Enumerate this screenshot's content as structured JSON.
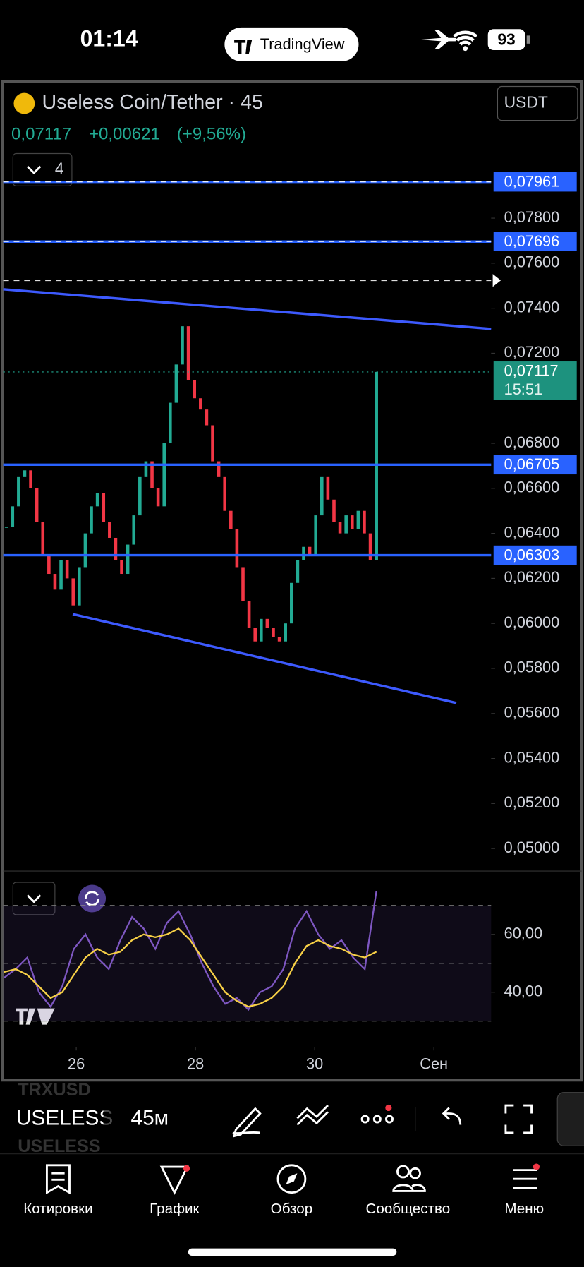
{
  "status": {
    "time": "01:14",
    "battery": "93"
  },
  "app_title": "TradingView",
  "header": {
    "symbol": "Useless Coin/Tether · 45",
    "currency": "USDT",
    "price": "0,07117",
    "change": "+0,00621",
    "change_pct": "(+9,56%)",
    "indicators": "4"
  },
  "chart_data": [
    {
      "type": "candlestick",
      "up_color": "#22ab94",
      "down_color": "#f23645",
      "closes": [
        0.0643,
        0.0652,
        0.0665,
        0.0668,
        0.066,
        0.0645,
        0.063,
        0.0622,
        0.0615,
        0.0628,
        0.062,
        0.0608,
        0.0625,
        0.064,
        0.0652,
        0.0658,
        0.0645,
        0.0638,
        0.0628,
        0.0622,
        0.0635,
        0.0648,
        0.0665,
        0.0672,
        0.066,
        0.0652,
        0.068,
        0.0698,
        0.0715,
        0.0732,
        0.0708,
        0.07,
        0.0695,
        0.0688,
        0.0672,
        0.0665,
        0.065,
        0.0642,
        0.0625,
        0.061,
        0.0598,
        0.0592,
        0.0602,
        0.0598,
        0.0594,
        0.0592,
        0.06,
        0.0618,
        0.0628,
        0.0634,
        0.063,
        0.0648,
        0.0665,
        0.0655,
        0.0645,
        0.064,
        0.0648,
        0.0642,
        0.065,
        0.064,
        0.0628,
        0.07117
      ],
      "ylim": [
        0.049,
        0.0841
      ],
      "yticks": [
        {
          "value": 0.05,
          "label": "0,05000"
        },
        {
          "value": 0.052,
          "label": "0,05200"
        },
        {
          "value": 0.054,
          "label": "0,05400"
        },
        {
          "value": 0.056,
          "label": "0,05600"
        },
        {
          "value": 0.058,
          "label": "0,05800"
        },
        {
          "value": 0.06,
          "label": "0,06000"
        },
        {
          "value": 0.062,
          "label": "0,06200"
        },
        {
          "value": 0.064,
          "label": "0,06400"
        },
        {
          "value": 0.066,
          "label": "0,06600"
        },
        {
          "value": 0.068,
          "label": "0,06800"
        },
        {
          "value": 0.072,
          "label": "0,07200"
        },
        {
          "value": 0.074,
          "label": "0,07400"
        },
        {
          "value": 0.076,
          "label": "0,07600"
        },
        {
          "value": 0.078,
          "label": "0,07800"
        }
      ],
      "levels": [
        {
          "value": 0.07961,
          "label": "0,07961"
        },
        {
          "value": 0.07696,
          "label": "0,07696"
        },
        {
          "value": 0.06705,
          "label": "0,06705"
        },
        {
          "value": 0.06303,
          "label": "0,06303"
        }
      ],
      "level_color": "#2962ff",
      "current": {
        "value": 0.07117,
        "label": "0,07117",
        "time": "15:51"
      },
      "xlim": [
        24.775,
        32.96
      ],
      "xticks": [
        {
          "value": 26,
          "label": "26"
        },
        {
          "value": 28,
          "label": "28"
        },
        {
          "value": 30,
          "label": "30"
        },
        {
          "value": 32,
          "label": "Сен"
        }
      ]
    },
    {
      "type": "line",
      "ylim": [
        27.7,
        79.1
      ],
      "yticks": [
        {
          "value": 60,
          "label": "60,00"
        },
        {
          "value": 40,
          "label": "40,00"
        }
      ],
      "levels": [
        70,
        50,
        30
      ],
      "series": [
        {
          "color": "#7e57c2",
          "values": [
            45,
            48,
            52,
            40,
            35,
            42,
            55,
            60,
            52,
            48,
            58,
            66,
            62,
            55,
            64,
            68,
            60,
            50,
            42,
            36,
            38,
            34,
            40,
            42,
            48,
            62,
            68,
            60,
            55,
            58,
            52,
            48,
            75
          ]
        },
        {
          "color": "#f7d046",
          "values": [
            47,
            48,
            46,
            42,
            38,
            40,
            46,
            52,
            55,
            53,
            54,
            58,
            60,
            59,
            60,
            62,
            58,
            52,
            46,
            40,
            37,
            35,
            36,
            38,
            42,
            50,
            56,
            58,
            56,
            55,
            53,
            52,
            54
          ]
        }
      ]
    }
  ],
  "toolbar": {
    "prev": "TRXUSD",
    "symbol": "USELESS",
    "next": "USELESS",
    "interval": "45м"
  },
  "nav": [
    "Котировки",
    "График",
    "Обзор",
    "Сообщество",
    "Меню"
  ]
}
